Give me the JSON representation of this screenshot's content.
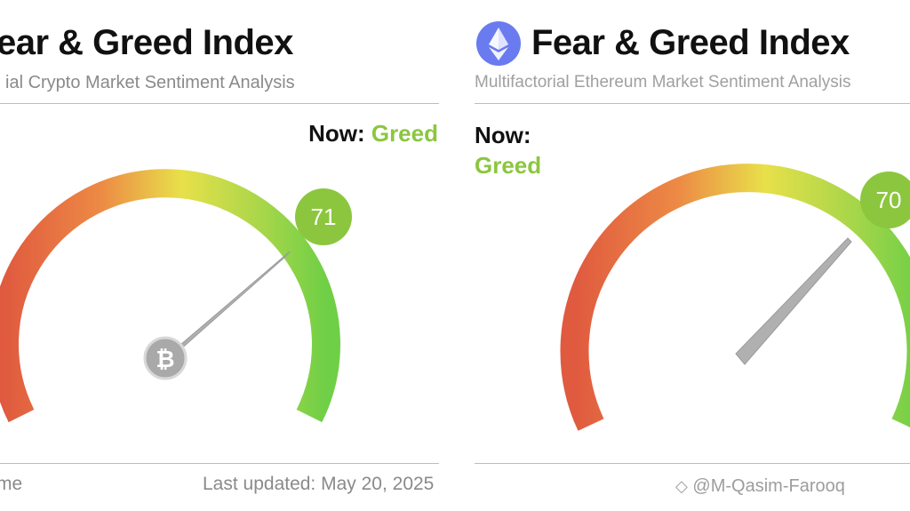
{
  "left_panel": {
    "title": "ear & Greed Index",
    "subtitle": "ial Crypto Market Sentiment Analysis",
    "now_label": "Now:",
    "now_value": "Greed",
    "score": "71",
    "footer_left": "me",
    "footer_right": "Last updated: May 20, 2025",
    "needle_icon": "bitcoin-icon"
  },
  "right_panel": {
    "title": "Fear & Greed Index",
    "subtitle": "Multifactorial Ethereum Market Sentiment Analysis",
    "now_label": "Now:",
    "now_value": "Greed",
    "score": "70",
    "logo_icon": "ethereum-icon"
  },
  "watermark": "@M-Qasim-Farooq",
  "colors": {
    "greed": "#8cc63f",
    "score_badge": "#8cc63f",
    "fear_red": "#e05a3f",
    "neutral_yellow": "#e8e04a",
    "greed_green": "#6fcf46",
    "needle": "#aaaaaa",
    "eth_logo": "#6a7bf0"
  }
}
